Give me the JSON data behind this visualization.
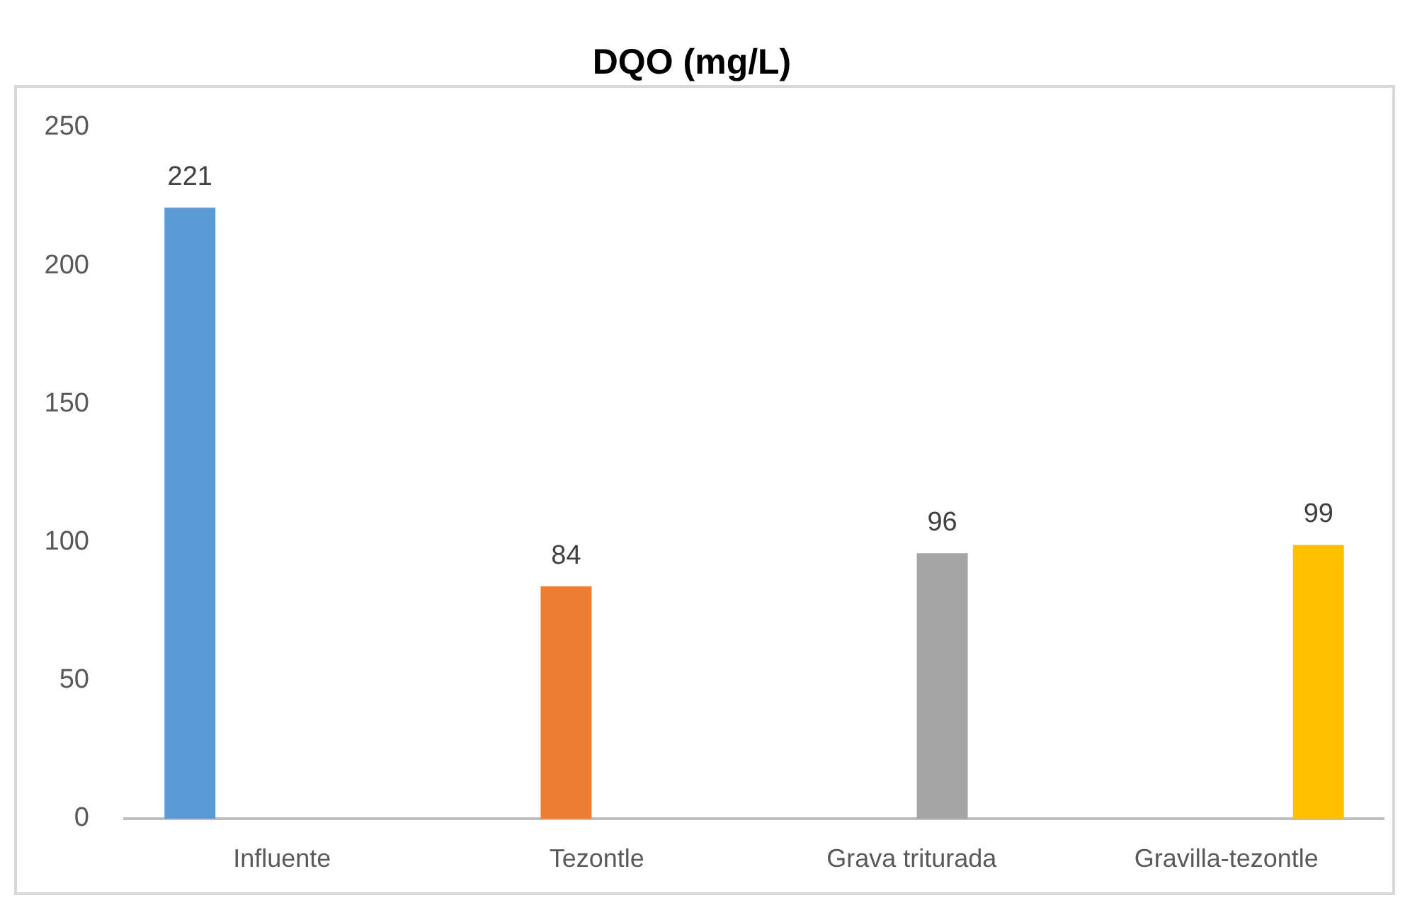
{
  "chart_data": {
    "type": "bar",
    "title": "DQO (mg/L)",
    "categories": [
      "Influente",
      "Tezontle",
      "Grava triturada",
      "Gravilla-tezontle"
    ],
    "series": [
      {
        "color": "#5b9bd5",
        "values": [
          221,
          null,
          null,
          null
        ]
      },
      {
        "color": "#ed7d31",
        "values": [
          null,
          84,
          null,
          null
        ]
      },
      {
        "color": "#a5a5a5",
        "values": [
          null,
          null,
          96,
          null
        ]
      },
      {
        "color": "#ffc000",
        "values": [
          null,
          null,
          null,
          99
        ]
      }
    ],
    "ylim": [
      0,
      250
    ],
    "yticks": [
      0,
      50,
      100,
      150,
      200,
      250
    ],
    "grid": false,
    "legend": false,
    "data_labels": true
  }
}
